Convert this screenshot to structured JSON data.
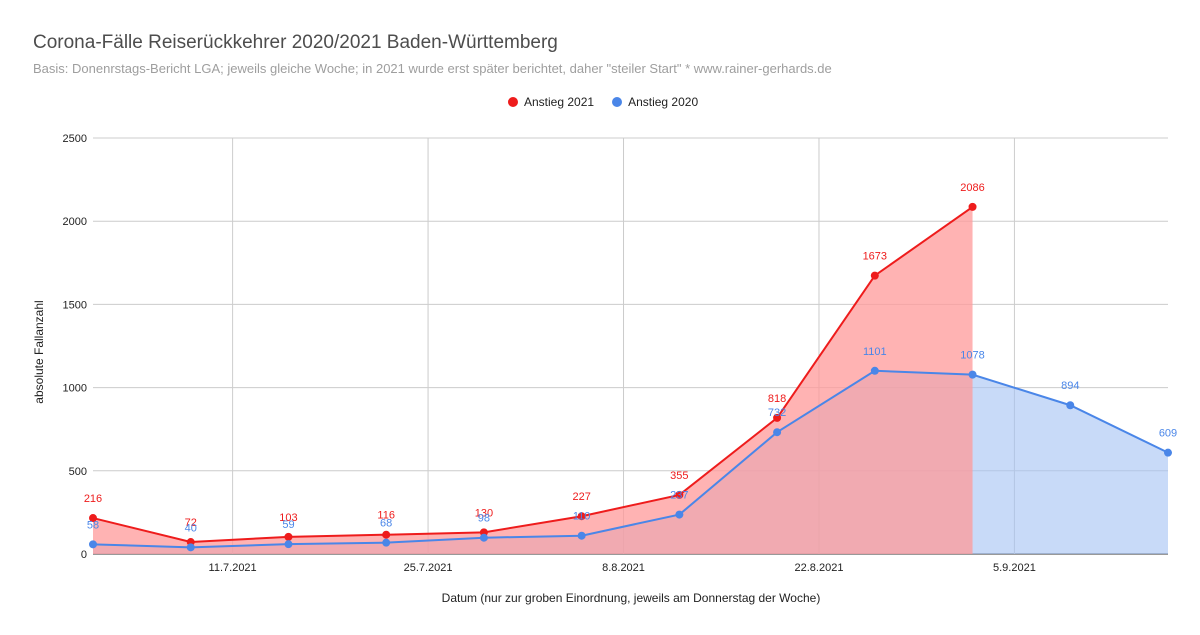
{
  "chart_data": {
    "type": "area",
    "title": "Corona-Fälle Reiserückkehrer 2020/2021 Baden-Württemberg",
    "subtitle": "Basis: Donenrstags-Bericht LGA; jeweils gleiche Woche; in 2021 wurde erst später berichtet, daher \"steiler Start\" * www.rainer-gerhards.de",
    "xlabel": "Datum (nur zur groben Einordnung, jeweils am Donnerstag der Woche)",
    "ylabel": "absolute Fallanzahl",
    "ylim": [
      0,
      2500
    ],
    "yticks": [
      "0",
      "500",
      "1000",
      "1500",
      "2000",
      "2500"
    ],
    "x_ticks": [
      "11.7.2021",
      "25.7.2021",
      "8.8.2021",
      "22.8.2021",
      "5.9.2021"
    ],
    "grid": true,
    "legend_position": "top",
    "x": [
      "2021-07-01",
      "2021-07-08",
      "2021-07-15",
      "2021-07-22",
      "2021-07-29",
      "2021-08-05",
      "2021-08-12",
      "2021-08-19",
      "2021-08-26",
      "2021-09-02",
      "2021-09-09",
      "2021-09-16"
    ],
    "series": [
      {
        "name": "Anstieg 2021",
        "color": "#ee1c1c",
        "fill": "#ff9999",
        "values": [
          216,
          72,
          103,
          116,
          130,
          227,
          355,
          818,
          1673,
          2086,
          null,
          null
        ]
      },
      {
        "name": "Anstieg 2020",
        "color": "#4a86e8",
        "fill": "#a4c2f4",
        "values": [
          58,
          40,
          59,
          68,
          98,
          110,
          237,
          732,
          1101,
          1078,
          894,
          609
        ]
      }
    ]
  }
}
